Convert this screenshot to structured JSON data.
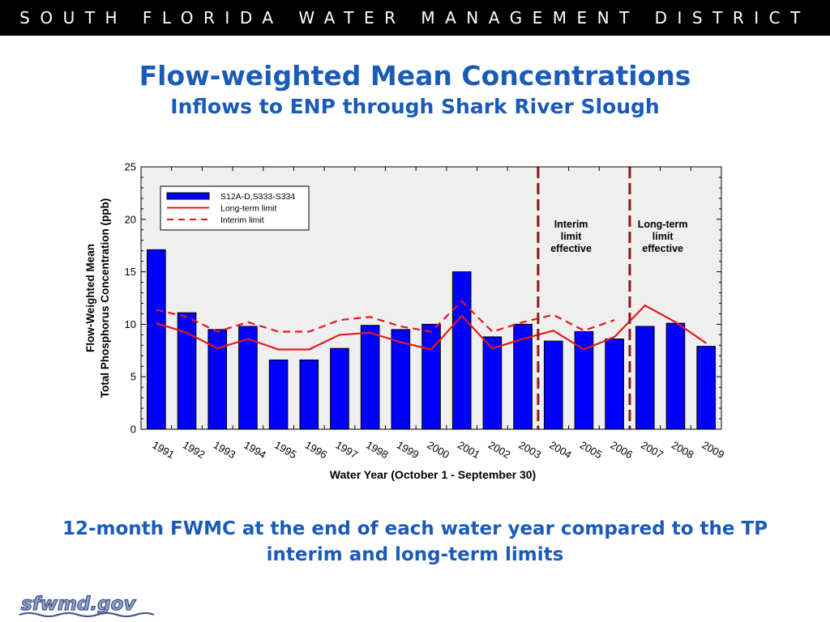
{
  "header": {
    "organization": "SOUTH FLORIDA WATER MANAGEMENT DISTRICT"
  },
  "slide": {
    "title": "Flow-weighted Mean Concentrations",
    "subtitle": "Inflows to ENP through Shark River Slough",
    "caption": "12-month FWMC at the end of each water year compared to the TP interim and long-term limits"
  },
  "logo": {
    "text": "sfwmd.gov"
  },
  "colors": {
    "accent": "#1a5bb8",
    "bar": "#0000ff",
    "limit_line": "#e31a1c",
    "marker_line": "#8b1a1a",
    "plot_bg": "#efefef"
  },
  "chart_data": {
    "type": "bar",
    "title": "",
    "ylabel_line1": "Flow-Weighted Mean",
    "ylabel_line2": "Total Phosphorus Concentration (ppb)",
    "xlabel": "Water Year (October 1 - September 30)",
    "ylim": [
      0,
      25
    ],
    "yticks": [
      0,
      5,
      10,
      15,
      20,
      25
    ],
    "grid": false,
    "legend_placement": "top-left",
    "categories": [
      "1991",
      "1992",
      "1993",
      "1994",
      "1995",
      "1996",
      "1997",
      "1998",
      "1999",
      "2000",
      "2001",
      "2002",
      "2003",
      "2004",
      "2005",
      "2006",
      "2007",
      "2008",
      "2009"
    ],
    "series": [
      {
        "name": "S12A-D,S333-S334",
        "kind": "bar",
        "values": [
          17.1,
          11.1,
          9.5,
          9.8,
          6.6,
          6.6,
          7.7,
          9.9,
          9.5,
          10.0,
          15.0,
          8.8,
          10.0,
          8.4,
          9.3,
          8.6,
          9.8,
          10.1,
          7.9
        ]
      },
      {
        "name": "Long-term limit",
        "kind": "line",
        "style": "solid",
        "values": [
          10.1,
          9.2,
          7.7,
          8.6,
          7.6,
          7.6,
          9.0,
          9.2,
          8.3,
          7.6,
          10.8,
          7.7,
          8.6,
          9.4,
          7.6,
          8.8,
          11.8,
          10.2,
          8.2
        ]
      },
      {
        "name": "Interim limit",
        "kind": "line",
        "style": "dashed",
        "values": [
          11.4,
          10.7,
          9.3,
          10.2,
          9.3,
          9.3,
          10.4,
          10.7,
          9.8,
          9.3,
          12.2,
          9.3,
          10.2,
          10.9,
          9.4,
          10.4,
          null,
          null,
          null
        ]
      }
    ],
    "annotations": [
      {
        "lines": [
          "Interim",
          "limit",
          "effective"
        ],
        "between": [
          "2003",
          "2004"
        ]
      },
      {
        "lines": [
          "Long-term",
          "limit",
          "effective"
        ],
        "between": [
          "2006",
          "2007"
        ]
      }
    ]
  }
}
